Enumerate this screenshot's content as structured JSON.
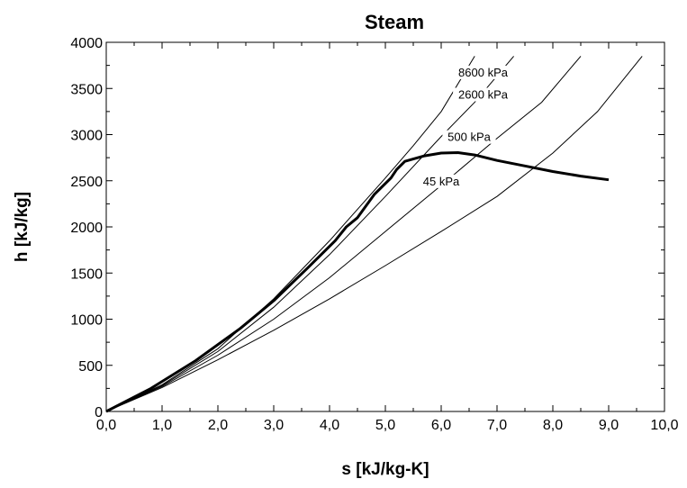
{
  "chart_data": {
    "type": "line",
    "title": "Steam",
    "xlabel": "s [kJ/kg-K]",
    "ylabel": "h [kJ/kg]",
    "xlim": [
      0,
      10
    ],
    "ylim": [
      0,
      4000
    ],
    "x_ticks": [
      "0,0",
      "1,0",
      "2,0",
      "3,0",
      "4,0",
      "5,0",
      "6,0",
      "7,0",
      "8,0",
      "9,0",
      "10,0"
    ],
    "y_ticks": [
      "0",
      "500",
      "1000",
      "1500",
      "2000",
      "2500",
      "3000",
      "3500",
      "4000"
    ],
    "grid": false,
    "saturation_dome": {
      "points": [
        [
          0,
          0
        ],
        [
          0.8,
          250
        ],
        [
          1.6,
          550
        ],
        [
          2.4,
          900
        ],
        [
          3.0,
          1200
        ],
        [
          3.6,
          1550
        ],
        [
          4.1,
          1850
        ],
        [
          4.3,
          2000
        ],
        [
          4.5,
          2100
        ],
        [
          4.8,
          2350
        ],
        [
          5.0,
          2470
        ],
        [
          5.1,
          2530
        ],
        [
          5.2,
          2620
        ],
        [
          5.35,
          2710
        ],
        [
          5.7,
          2770
        ],
        [
          6.0,
          2800
        ],
        [
          6.3,
          2805
        ],
        [
          6.6,
          2780
        ],
        [
          7.0,
          2720
        ],
        [
          7.5,
          2660
        ],
        [
          8.0,
          2600
        ],
        [
          8.5,
          2550
        ],
        [
          9.0,
          2510
        ]
      ]
    },
    "series": [
      {
        "name": "8600 kPa",
        "points": [
          [
            0,
            0
          ],
          [
            1,
            290
          ],
          [
            2,
            680
          ],
          [
            3,
            1220
          ],
          [
            4,
            1850
          ],
          [
            5,
            2530
          ],
          [
            5.5,
            2880
          ],
          [
            6.0,
            3250
          ],
          [
            6.6,
            3850
          ]
        ]
      },
      {
        "name": "2600 kPa",
        "points": [
          [
            0,
            0
          ],
          [
            1,
            280
          ],
          [
            2,
            650
          ],
          [
            3,
            1130
          ],
          [
            4,
            1700
          ],
          [
            5,
            2330
          ],
          [
            6.0,
            2980
          ],
          [
            6.6,
            3350
          ],
          [
            7.3,
            3850
          ]
        ]
      },
      {
        "name": "500 kPa",
        "points": [
          [
            0,
            0
          ],
          [
            1,
            270
          ],
          [
            2,
            610
          ],
          [
            3,
            1000
          ],
          [
            4,
            1450
          ],
          [
            5,
            1950
          ],
          [
            6,
            2450
          ],
          [
            7,
            2960
          ],
          [
            7.8,
            3350
          ],
          [
            8.5,
            3850
          ]
        ]
      },
      {
        "name": "45 kPa",
        "points": [
          [
            0,
            0
          ],
          [
            1,
            260
          ],
          [
            2,
            560
          ],
          [
            3,
            880
          ],
          [
            4,
            1220
          ],
          [
            5,
            1580
          ],
          [
            6,
            1950
          ],
          [
            7,
            2330
          ],
          [
            8,
            2800
          ],
          [
            8.8,
            3250
          ],
          [
            9.6,
            3850
          ]
        ]
      }
    ]
  }
}
